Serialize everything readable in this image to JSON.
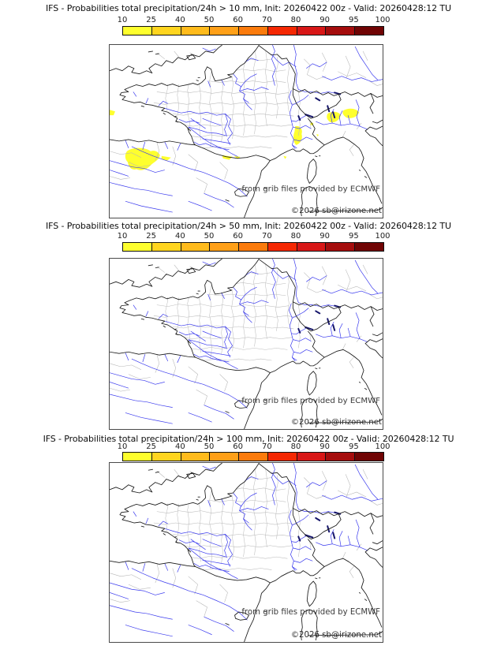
{
  "panels": [
    {
      "title": "IFS - Probabilities total precipitation/24h > 10 mm, Init: 20260422 00z - Valid: 20260428:12 TU",
      "threshold": "10 mm",
      "has_probability_shading": true
    },
    {
      "title": "IFS - Probabilities total precipitation/24h > 50 mm, Init: 20260422 00z - Valid: 20260428:12 TU",
      "threshold": "50 mm",
      "has_probability_shading": false
    },
    {
      "title": "IFS - Probabilities total precipitation/24h > 100 mm, Init: 20260422 00z - Valid: 20260428:12 TU",
      "threshold": "100 mm",
      "has_probability_shading": false
    }
  ],
  "colorbar": {
    "ticks": [
      "10",
      "25",
      "40",
      "50",
      "60",
      "70",
      "80",
      "90",
      "95",
      "100"
    ],
    "segment_colors": [
      "#feff2e",
      "#ffd51f",
      "#ffbb1c",
      "#ffa018",
      "#fb7b0c",
      "#f52803",
      "#d81717",
      "#a50d0d",
      "#700404"
    ]
  },
  "watermark": {
    "line1": "from grib files provided by ECMWF",
    "line2": "©2026 sb@irizone.net"
  },
  "map_colors": {
    "coastline": "#1a1a1a",
    "admin_mesh": "#bdbdbd",
    "rivers": "#3b3bee",
    "lakes": "#16166b",
    "probability_shading": "#feff2e"
  }
}
